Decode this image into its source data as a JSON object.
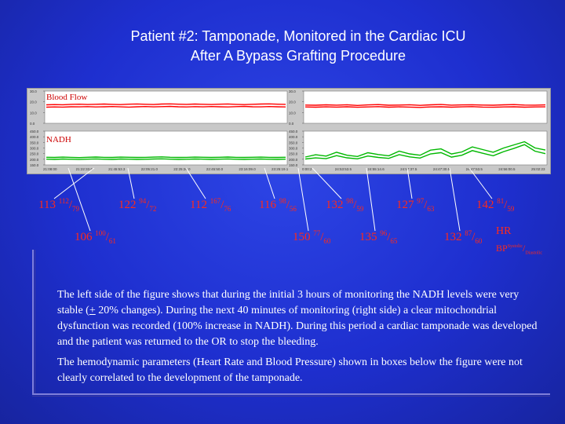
{
  "slide": {
    "title_line1": "Patient #2: Tamponade, Monitored in the Cardiac ICU",
    "title_line2": "After A Bypass Grafting Procedure"
  },
  "chart_data": [
    {
      "type": "line",
      "title": "Blood Flow",
      "color": "#ff0000",
      "left_ytick_labels": [
        "30.0",
        "20.0",
        "10.0",
        "0.0"
      ],
      "right_ytick_labels": [
        "30.0",
        "20.0",
        "10.0",
        "0.0"
      ],
      "left_series": [
        {
          "name": "",
          "values": [
            17.2,
            17.4,
            17.3,
            17.6,
            17.8,
            17.5,
            17.7,
            17.9,
            17.6,
            17.4,
            17.8,
            18.0,
            17.7,
            17.5,
            17.9,
            18.1,
            17.8,
            17.6,
            17.9,
            17.7,
            17.5,
            17.8,
            18.0,
            17.6,
            17.4,
            17.7,
            17.9,
            18.1,
            17.8,
            17.6
          ]
        },
        {
          "name": "",
          "values": [
            15.0,
            15.2,
            15.1,
            15.4,
            15.3,
            15.5,
            15.2,
            15.4,
            15.6,
            15.3,
            15.1,
            15.4,
            15.6,
            15.3,
            15.5,
            15.7,
            15.4,
            15.2,
            15.5,
            15.3,
            15.6,
            15.4,
            15.2,
            15.5,
            15.7,
            15.4,
            15.3,
            15.6,
            15.4,
            15.2
          ]
        }
      ],
      "right_series": [
        {
          "name": "",
          "values": [
            17.0,
            16.8,
            17.2,
            16.9,
            17.3,
            16.6,
            17.1,
            17.4,
            16.8,
            17.0,
            17.3,
            16.7,
            17.2,
            17.5,
            16.9,
            17.1,
            17.3,
            17.0,
            16.8,
            17.2,
            17.4,
            17.0,
            16.9,
            17.1
          ]
        },
        {
          "name": "",
          "values": [
            15.2,
            15.0,
            15.3,
            15.1,
            15.4,
            14.9,
            15.2,
            15.5,
            15.0,
            15.3,
            15.1,
            14.8,
            15.2,
            15.4,
            15.0,
            15.3,
            15.5,
            15.1,
            14.9,
            15.2,
            15.4,
            15.0,
            15.2,
            15.3
          ]
        }
      ]
    },
    {
      "type": "line",
      "title": "NADH",
      "color": "#00b800",
      "left_ytick_labels": [
        "450.0",
        "400.0",
        "350.0",
        "300.0",
        "250.0",
        "200.0",
        "150.0"
      ],
      "right_ytick_labels": [
        "450.0",
        "400.0",
        "350.0",
        "300.0",
        "250.0",
        "200.0",
        "150.0"
      ],
      "left_series": [
        {
          "name": "",
          "values": [
            218,
            216,
            219,
            217,
            215,
            218,
            220,
            217,
            216,
            219,
            218,
            216,
            217,
            219,
            221,
            218,
            216,
            217,
            219,
            218,
            216,
            218,
            220,
            217,
            216,
            218,
            219,
            217,
            216,
            218
          ]
        },
        {
          "name": "",
          "values": [
            201,
            199,
            202,
            200,
            198,
            201,
            203,
            200,
            199,
            202,
            201,
            199,
            200,
            202,
            204,
            201,
            199,
            200,
            202,
            201,
            199,
            201,
            203,
            200,
            199,
            201,
            202,
            200,
            199,
            201
          ]
        }
      ],
      "right_series": [
        {
          "name": "",
          "values": [
            220,
            240,
            228,
            262,
            236,
            225,
            258,
            242,
            231,
            272,
            248,
            236,
            281,
            292,
            247,
            265,
            310,
            286,
            262,
            300,
            328,
            356,
            301,
            282
          ]
        },
        {
          "name": "",
          "values": [
            202,
            212,
            205,
            232,
            213,
            204,
            229,
            216,
            208,
            241,
            221,
            211,
            248,
            259,
            219,
            236,
            277,
            253,
            231,
            268,
            297,
            330,
            272,
            250
          ]
        }
      ]
    }
  ],
  "time_axis": {
    "left_ticks": [
      "21:08:00",
      "21:22:33.6",
      "21:45:53.3",
      "22:05:21.0",
      "22:25:26.0",
      "22:45:50.0",
      "23:16:09.0",
      "23:25:19.1"
    ],
    "right_ticks": [
      "0:00:2",
      "24:53:53.5",
      "24:55:14.6",
      "24:57:37.5",
      "24:47:30.5",
      "24:47:53.5",
      "24:56:00.5",
      "25:02:23"
    ]
  },
  "hemodynamics": {
    "boxes": [
      {
        "hr": "113",
        "sys": "112",
        "dia": "79"
      },
      {
        "hr": "106",
        "sys": "100",
        "dia": "61"
      },
      {
        "hr": "122",
        "sys": "94",
        "dia": "72"
      },
      {
        "hr": "112",
        "sys": "167",
        "dia": "76"
      },
      {
        "hr": "116",
        "sys": "98",
        "dia": "56"
      },
      {
        "hr": "132",
        "sys": "98",
        "dia": "59"
      },
      {
        "hr": "150",
        "sys": "77",
        "dia": "60"
      },
      {
        "hr": "135",
        "sys": "96",
        "dia": "65"
      },
      {
        "hr": "127",
        "sys": "97",
        "dia": "63"
      },
      {
        "hr": "132",
        "sys": "87",
        "dia": "60"
      },
      {
        "hr": "142",
        "sys": "81",
        "dia": "59"
      }
    ],
    "legend_hr": "HR",
    "legend_bp": "BP",
    "legend_bp_sup": "Systolic",
    "legend_bp_sub": "Diastolic"
  },
  "description": {
    "para1_before": "The left side of the figure shows that during the initial 3 hours of monitoring the NADH levels were very stable (",
    "para1_pm": "+",
    "para1_after": " 20% changes). During the next 40 minutes of monitoring (right side) a clear mitochondrial dysfunction was recorded (100% increase in NADH). During this period a cardiac tamponade was developed and the patient was returned to the OR to stop the bleeding.",
    "para2": "The hemodynamic parameters (Heart Rate and Blood Pressure) shown in boxes below the figure were not clearly correlated to the development of the tamponade."
  },
  "colors": {
    "background": "#1f2fd0",
    "panel": "#ffffff",
    "blood_flow": "#ff0000",
    "nadh": "#00b800",
    "hemo_text": "#ff2a1a",
    "connector": "#ffffff"
  }
}
